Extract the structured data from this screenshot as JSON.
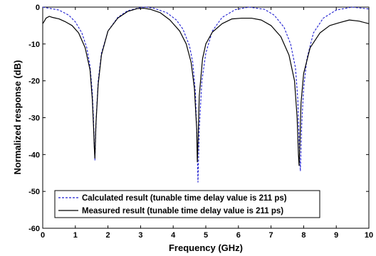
{
  "chart_data": {
    "type": "line",
    "xlabel": "Frequency (GHz)",
    "ylabel": "Normalized response (dB)",
    "xlim": [
      0,
      10
    ],
    "ylim": [
      -60,
      0
    ],
    "xticks": [
      0,
      1,
      2,
      3,
      4,
      5,
      6,
      7,
      8,
      9,
      10
    ],
    "yticks": [
      0,
      -10,
      -20,
      -30,
      -40,
      -50,
      -60
    ],
    "grid": false,
    "legend_position": "bottom-left",
    "series": [
      {
        "name": "Calculated result (tunable time delay value is 211 ps)",
        "color": "#1f1fd0",
        "style": "dashed",
        "x": [
          0.0,
          0.5,
          0.8,
          1.0,
          1.2,
          1.35,
          1.45,
          1.52,
          1.56,
          1.58,
          1.6,
          1.64,
          1.7,
          1.8,
          2.0,
          2.3,
          2.6,
          3.0,
          3.16,
          3.4,
          3.8,
          4.1,
          4.3,
          4.5,
          4.6,
          4.68,
          4.72,
          4.74,
          4.76,
          4.8,
          4.88,
          5.0,
          5.2,
          5.5,
          5.9,
          6.32,
          6.8,
          7.1,
          7.4,
          7.6,
          7.75,
          7.82,
          7.86,
          7.88,
          7.9,
          7.94,
          8.0,
          8.1,
          8.3,
          8.6,
          9.0,
          9.48,
          10.0
        ],
        "y": [
          0.0,
          -0.8,
          -2.2,
          -4.0,
          -7.0,
          -11.0,
          -16.0,
          -23.0,
          -31.0,
          -37.0,
          -41.5,
          -30.0,
          -20.0,
          -12.5,
          -6.5,
          -2.8,
          -1.0,
          -0.1,
          0.0,
          -0.3,
          -1.5,
          -3.5,
          -6.0,
          -10.5,
          -15.0,
          -23.0,
          -33.0,
          -40.0,
          -47.5,
          -33.0,
          -20.0,
          -12.5,
          -6.5,
          -2.8,
          -0.7,
          0.0,
          -0.6,
          -2.2,
          -5.5,
          -10.0,
          -16.5,
          -25.0,
          -36.0,
          -41.0,
          -44.5,
          -32.0,
          -22.0,
          -14.0,
          -7.0,
          -3.0,
          -0.8,
          0.0,
          -0.5
        ]
      },
      {
        "name": "Measured result (tunable time delay value is 211 ps)",
        "color": "#000000",
        "style": "solid",
        "x": [
          0.0,
          0.05,
          0.1,
          0.2,
          0.3,
          0.5,
          0.7,
          0.9,
          1.1,
          1.3,
          1.45,
          1.52,
          1.56,
          1.58,
          1.6,
          1.63,
          1.7,
          1.8,
          2.0,
          2.3,
          2.6,
          2.9,
          3.1,
          3.3,
          3.6,
          3.9,
          4.2,
          4.4,
          4.55,
          4.65,
          4.72,
          4.74,
          4.76,
          4.8,
          4.9,
          5.0,
          5.2,
          5.5,
          5.8,
          6.1,
          6.4,
          6.7,
          7.0,
          7.3,
          7.55,
          7.72,
          7.8,
          7.84,
          7.86,
          7.88,
          7.92,
          8.0,
          8.2,
          8.5,
          8.8,
          9.1,
          9.4,
          9.7,
          10.0
        ],
        "y": [
          -4.5,
          -3.8,
          -3.0,
          -2.5,
          -2.8,
          -3.2,
          -4.0,
          -5.0,
          -7.0,
          -11.0,
          -17.0,
          -25.0,
          -33.0,
          -38.0,
          -41.0,
          -32.0,
          -21.0,
          -13.0,
          -6.5,
          -3.0,
          -1.2,
          -0.4,
          -0.3,
          -0.6,
          -1.5,
          -3.5,
          -6.5,
          -10.0,
          -15.0,
          -22.0,
          -33.0,
          -42.0,
          -37.0,
          -24.0,
          -14.0,
          -10.0,
          -6.8,
          -4.5,
          -3.2,
          -3.0,
          -3.0,
          -3.5,
          -5.0,
          -8.0,
          -13.0,
          -20.0,
          -30.0,
          -40.0,
          -43.0,
          -38.0,
          -26.0,
          -18.0,
          -11.0,
          -7.0,
          -5.0,
          -4.2,
          -3.5,
          -3.8,
          -4.5
        ]
      }
    ]
  }
}
